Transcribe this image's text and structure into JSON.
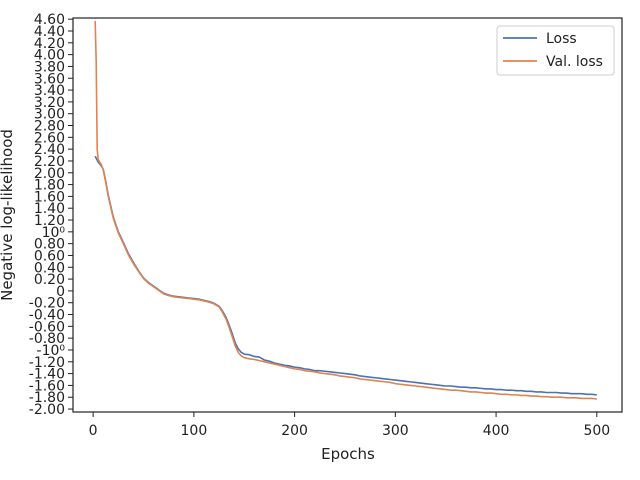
{
  "chart_data": {
    "type": "line",
    "title": "",
    "xlabel": "Epochs",
    "ylabel": "Negative log-likelihood",
    "xlim": [
      -20,
      525
    ],
    "ylim": [
      -2.05,
      4.62
    ],
    "grid": false,
    "legend_position": "top-right",
    "x_ticks": [
      {
        "value": 0,
        "label": "0"
      },
      {
        "value": 100,
        "label": "100"
      },
      {
        "value": 200,
        "label": "200"
      },
      {
        "value": 300,
        "label": "300"
      },
      {
        "value": 400,
        "label": "400"
      },
      {
        "value": 500,
        "label": "500"
      }
    ],
    "y_ticks": [
      {
        "value": 4.6,
        "label": "4.60"
      },
      {
        "value": 4.4,
        "label": "4.40"
      },
      {
        "value": 4.2,
        "label": "4.20"
      },
      {
        "value": 4.0,
        "label": "4.00"
      },
      {
        "value": 3.8,
        "label": "3.80"
      },
      {
        "value": 3.6,
        "label": "3.60"
      },
      {
        "value": 3.4,
        "label": "3.40"
      },
      {
        "value": 3.2,
        "label": "3.20"
      },
      {
        "value": 3.0,
        "label": "3.00"
      },
      {
        "value": 2.8,
        "label": "2.80"
      },
      {
        "value": 2.6,
        "label": "2.60"
      },
      {
        "value": 2.4,
        "label": "2.40"
      },
      {
        "value": 2.2,
        "label": "2.20"
      },
      {
        "value": 2.0,
        "label": "2.00"
      },
      {
        "value": 1.8,
        "label": "1.80"
      },
      {
        "value": 1.6,
        "label": "1.60"
      },
      {
        "value": 1.4,
        "label": "1.40"
      },
      {
        "value": 1.2,
        "label": "1.20"
      },
      {
        "value": 1.0,
        "label": "10⁰"
      },
      {
        "value": 0.8,
        "label": "0.80"
      },
      {
        "value": 0.6,
        "label": "0.60"
      },
      {
        "value": 0.4,
        "label": "0.40"
      },
      {
        "value": 0.2,
        "label": "0.20"
      },
      {
        "value": 0.0,
        "label": "0"
      },
      {
        "value": -0.2,
        "label": "-0.20"
      },
      {
        "value": -0.4,
        "label": "-0.40"
      },
      {
        "value": -0.6,
        "label": "-0.60"
      },
      {
        "value": -0.8,
        "label": "-0.80"
      },
      {
        "value": -1.0,
        "label": "-10⁰"
      },
      {
        "value": -1.2,
        "label": "-1.20"
      },
      {
        "value": -1.4,
        "label": "-1.40"
      },
      {
        "value": -1.6,
        "label": "-1.60"
      },
      {
        "value": -1.8,
        "label": "-1.80"
      },
      {
        "value": -2.0,
        "label": "-2.00"
      }
    ],
    "series": [
      {
        "name": "Loss",
        "color": "#4c72b0",
        "points": [
          [
            2,
            2.28
          ],
          [
            5,
            2.18
          ],
          [
            8,
            2.12
          ],
          [
            10,
            2.06
          ],
          [
            12,
            1.9
          ],
          [
            15,
            1.62
          ],
          [
            20,
            1.25
          ],
          [
            25,
            1.0
          ],
          [
            30,
            0.82
          ],
          [
            35,
            0.63
          ],
          [
            40,
            0.48
          ],
          [
            45,
            0.34
          ],
          [
            50,
            0.22
          ],
          [
            55,
            0.14
          ],
          [
            60,
            0.08
          ],
          [
            65,
            0.02
          ],
          [
            70,
            -0.04
          ],
          [
            75,
            -0.07
          ],
          [
            80,
            -0.09
          ],
          [
            85,
            -0.1
          ],
          [
            90,
            -0.11
          ],
          [
            95,
            -0.12
          ],
          [
            100,
            -0.13
          ],
          [
            105,
            -0.14
          ],
          [
            110,
            -0.16
          ],
          [
            115,
            -0.18
          ],
          [
            120,
            -0.21
          ],
          [
            125,
            -0.26
          ],
          [
            128,
            -0.33
          ],
          [
            132,
            -0.45
          ],
          [
            135,
            -0.58
          ],
          [
            138,
            -0.72
          ],
          [
            141,
            -0.88
          ],
          [
            144,
            -0.98
          ],
          [
            147,
            -1.04
          ],
          [
            150,
            -1.07
          ],
          [
            155,
            -1.08
          ],
          [
            160,
            -1.11
          ],
          [
            165,
            -1.12
          ],
          [
            170,
            -1.17
          ],
          [
            175,
            -1.19
          ],
          [
            180,
            -1.22
          ],
          [
            185,
            -1.24
          ],
          [
            190,
            -1.26
          ],
          [
            195,
            -1.27
          ],
          [
            200,
            -1.29
          ],
          [
            205,
            -1.3
          ],
          [
            210,
            -1.32
          ],
          [
            215,
            -1.33
          ],
          [
            220,
            -1.35
          ],
          [
            225,
            -1.35
          ],
          [
            230,
            -1.36
          ],
          [
            235,
            -1.37
          ],
          [
            240,
            -1.38
          ],
          [
            245,
            -1.39
          ],
          [
            250,
            -1.4
          ],
          [
            255,
            -1.41
          ],
          [
            260,
            -1.42
          ],
          [
            265,
            -1.44
          ],
          [
            270,
            -1.45
          ],
          [
            275,
            -1.46
          ],
          [
            280,
            -1.47
          ],
          [
            285,
            -1.48
          ],
          [
            290,
            -1.49
          ],
          [
            295,
            -1.5
          ],
          [
            300,
            -1.51
          ],
          [
            305,
            -1.52
          ],
          [
            310,
            -1.53
          ],
          [
            315,
            -1.54
          ],
          [
            320,
            -1.55
          ],
          [
            325,
            -1.56
          ],
          [
            330,
            -1.57
          ],
          [
            335,
            -1.58
          ],
          [
            340,
            -1.59
          ],
          [
            345,
            -1.6
          ],
          [
            350,
            -1.61
          ],
          [
            355,
            -1.61
          ],
          [
            360,
            -1.62
          ],
          [
            365,
            -1.63
          ],
          [
            370,
            -1.63
          ],
          [
            375,
            -1.64
          ],
          [
            380,
            -1.64
          ],
          [
            385,
            -1.65
          ],
          [
            390,
            -1.66
          ],
          [
            395,
            -1.66
          ],
          [
            400,
            -1.67
          ],
          [
            405,
            -1.67
          ],
          [
            410,
            -1.68
          ],
          [
            415,
            -1.68
          ],
          [
            420,
            -1.69
          ],
          [
            425,
            -1.69
          ],
          [
            430,
            -1.7
          ],
          [
            435,
            -1.7
          ],
          [
            440,
            -1.71
          ],
          [
            445,
            -1.71
          ],
          [
            450,
            -1.72
          ],
          [
            455,
            -1.72
          ],
          [
            460,
            -1.72
          ],
          [
            465,
            -1.73
          ],
          [
            470,
            -1.73
          ],
          [
            475,
            -1.74
          ],
          [
            480,
            -1.74
          ],
          [
            485,
            -1.74
          ],
          [
            490,
            -1.75
          ],
          [
            495,
            -1.75
          ],
          [
            500,
            -1.76
          ]
        ]
      },
      {
        "name": "Val. loss",
        "color": "#dd8452",
        "points": [
          [
            2,
            4.57
          ],
          [
            3,
            3.9
          ],
          [
            4,
            2.4
          ],
          [
            5,
            2.22
          ],
          [
            8,
            2.14
          ],
          [
            10,
            2.05
          ],
          [
            12,
            1.88
          ],
          [
            15,
            1.6
          ],
          [
            20,
            1.23
          ],
          [
            25,
            0.98
          ],
          [
            30,
            0.8
          ],
          [
            35,
            0.61
          ],
          [
            40,
            0.46
          ],
          [
            45,
            0.33
          ],
          [
            50,
            0.21
          ],
          [
            55,
            0.13
          ],
          [
            60,
            0.07
          ],
          [
            65,
            0.01
          ],
          [
            70,
            -0.05
          ],
          [
            75,
            -0.08
          ],
          [
            80,
            -0.1
          ],
          [
            85,
            -0.11
          ],
          [
            90,
            -0.12
          ],
          [
            95,
            -0.13
          ],
          [
            100,
            -0.14
          ],
          [
            105,
            -0.15
          ],
          [
            110,
            -0.17
          ],
          [
            115,
            -0.19
          ],
          [
            120,
            -0.22
          ],
          [
            125,
            -0.27
          ],
          [
            128,
            -0.35
          ],
          [
            132,
            -0.48
          ],
          [
            135,
            -0.62
          ],
          [
            138,
            -0.77
          ],
          [
            141,
            -0.93
          ],
          [
            144,
            -1.04
          ],
          [
            147,
            -1.1
          ],
          [
            150,
            -1.13
          ],
          [
            155,
            -1.15
          ],
          [
            160,
            -1.16
          ],
          [
            165,
            -1.18
          ],
          [
            170,
            -1.2
          ],
          [
            175,
            -1.22
          ],
          [
            180,
            -1.24
          ],
          [
            185,
            -1.26
          ],
          [
            190,
            -1.28
          ],
          [
            195,
            -1.3
          ],
          [
            200,
            -1.32
          ],
          [
            205,
            -1.33
          ],
          [
            210,
            -1.35
          ],
          [
            215,
            -1.36
          ],
          [
            220,
            -1.37
          ],
          [
            225,
            -1.39
          ],
          [
            230,
            -1.4
          ],
          [
            235,
            -1.41
          ],
          [
            240,
            -1.42
          ],
          [
            245,
            -1.44
          ],
          [
            250,
            -1.45
          ],
          [
            255,
            -1.46
          ],
          [
            260,
            -1.47
          ],
          [
            265,
            -1.49
          ],
          [
            270,
            -1.5
          ],
          [
            275,
            -1.51
          ],
          [
            280,
            -1.52
          ],
          [
            285,
            -1.53
          ],
          [
            290,
            -1.54
          ],
          [
            295,
            -1.55
          ],
          [
            300,
            -1.57
          ],
          [
            305,
            -1.58
          ],
          [
            310,
            -1.59
          ],
          [
            315,
            -1.6
          ],
          [
            320,
            -1.61
          ],
          [
            325,
            -1.62
          ],
          [
            330,
            -1.63
          ],
          [
            335,
            -1.64
          ],
          [
            340,
            -1.65
          ],
          [
            345,
            -1.66
          ],
          [
            350,
            -1.67
          ],
          [
            355,
            -1.68
          ],
          [
            360,
            -1.68
          ],
          [
            365,
            -1.69
          ],
          [
            370,
            -1.7
          ],
          [
            375,
            -1.71
          ],
          [
            380,
            -1.71
          ],
          [
            385,
            -1.72
          ],
          [
            390,
            -1.73
          ],
          [
            395,
            -1.73
          ],
          [
            400,
            -1.74
          ],
          [
            405,
            -1.75
          ],
          [
            410,
            -1.75
          ],
          [
            415,
            -1.76
          ],
          [
            420,
            -1.76
          ],
          [
            425,
            -1.77
          ],
          [
            430,
            -1.77
          ],
          [
            435,
            -1.78
          ],
          [
            440,
            -1.78
          ],
          [
            445,
            -1.79
          ],
          [
            450,
            -1.79
          ],
          [
            455,
            -1.8
          ],
          [
            460,
            -1.8
          ],
          [
            465,
            -1.8
          ],
          [
            470,
            -1.81
          ],
          [
            475,
            -1.81
          ],
          [
            480,
            -1.81
          ],
          [
            485,
            -1.82
          ],
          [
            490,
            -1.82
          ],
          [
            495,
            -1.82
          ],
          [
            500,
            -1.83
          ]
        ]
      }
    ]
  }
}
